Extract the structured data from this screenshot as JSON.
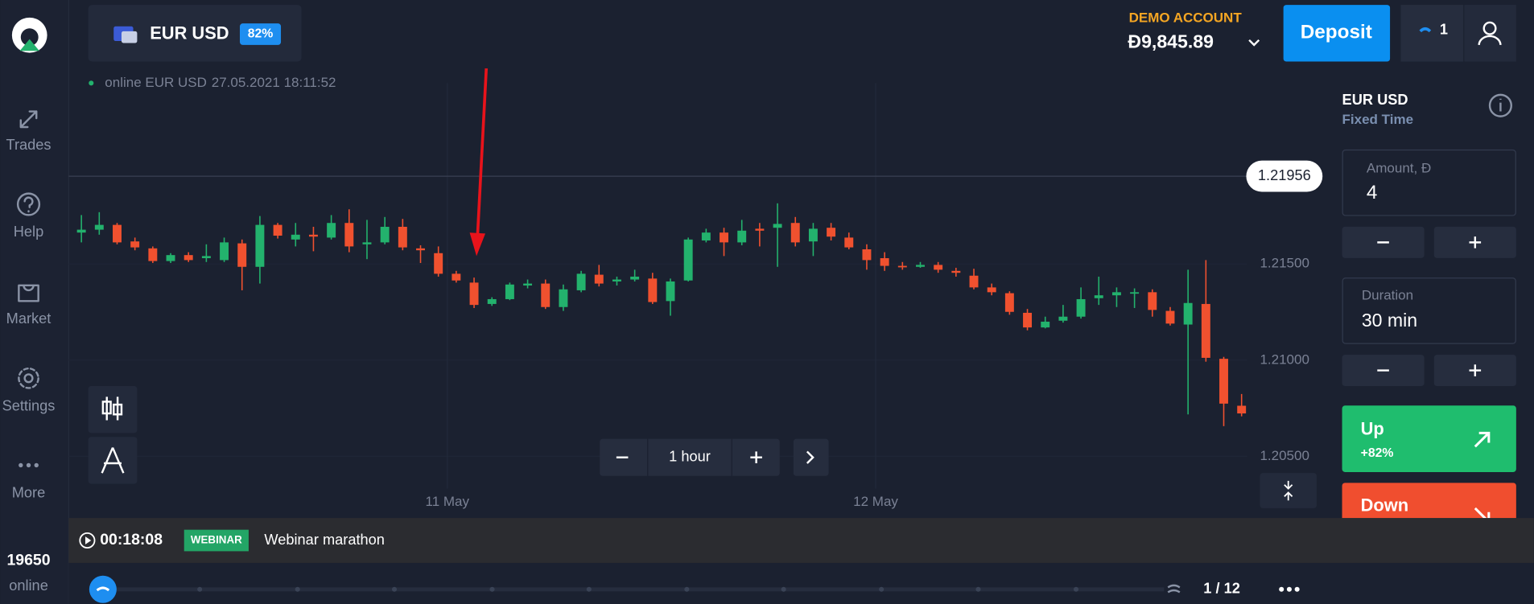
{
  "sidebar": {
    "nav": [
      "Trades",
      "Help",
      "Market",
      "Settings",
      "More"
    ],
    "online_count": 19650,
    "online_label": "online"
  },
  "header": {
    "asset": "EUR USD",
    "payout": "82%",
    "account_type": "DEMO ACCOUNT",
    "balance": "Đ9,845.89",
    "deposit": "Deposit",
    "notifications": 1
  },
  "chart_status": {
    "status": "online EUR USD",
    "timestamp": "27.05.2021 18:11:52"
  },
  "chart_data": {
    "type": "candlestick",
    "categories": [
      null,
      null,
      null,
      null,
      null,
      null,
      null,
      null,
      null,
      null,
      null,
      null,
      null,
      null,
      null,
      null,
      null,
      null,
      null,
      null,
      null,
      "11 May",
      null,
      null,
      null,
      null,
      null,
      null,
      null,
      null,
      null,
      null,
      null,
      null,
      null,
      null,
      null,
      null,
      null,
      null,
      null,
      null,
      null,
      null,
      null,
      "12 May",
      null,
      null,
      null,
      null,
      null,
      null,
      null,
      null,
      null,
      null,
      null,
      null,
      null,
      null,
      null,
      null,
      null,
      null,
      null,
      null
    ],
    "open": [
      1.21663,
      1.21678,
      1.21703,
      1.21617,
      1.21581,
      1.21515,
      1.21546,
      1.2153,
      1.2152,
      1.21607,
      1.21485,
      1.21703,
      1.21627,
      1.21652,
      1.21637,
      1.21713,
      1.21602,
      1.21612,
      1.21693,
      1.21581,
      1.21556,
      1.21449,
      1.21403,
      1.21292,
      1.21317,
      1.21388,
      1.21398,
      1.21276,
      1.21363,
      1.21444,
      1.21409,
      1.21419,
      1.21424,
      1.21307,
      1.21414,
      1.21622,
      1.21663,
      1.21612,
      1.21683,
      1.21688,
      1.21713,
      1.21617,
      1.21688,
      1.21637,
      1.21576,
      1.2153,
      1.2149,
      1.21485,
      1.21495,
      1.21464,
      1.21439,
      1.21378,
      1.21348,
      1.21246,
      1.2117,
      1.21205,
      1.21226,
      1.21322,
      1.21337,
      1.21348,
      1.21353,
      1.21256,
      1.21185,
      1.21292,
      1.21007,
      1.20763
    ],
    "high": [
      1.21754,
      1.21769,
      1.21713,
      1.21637,
      1.21591,
      1.21556,
      1.21561,
      1.21602,
      1.21637,
      1.21627,
      1.21749,
      1.21713,
      1.21713,
      1.21693,
      1.21754,
      1.21784,
      1.21729,
      1.21744,
      1.21734,
      1.21597,
      1.21591,
      1.21464,
      1.21429,
      1.21327,
      1.21403,
      1.21419,
      1.21419,
      1.21393,
      1.21464,
      1.21495,
      1.21434,
      1.2147,
      1.21454,
      1.21424,
      1.21637,
      1.21683,
      1.21688,
      1.21729,
      1.21713,
      1.21815,
      1.21744,
      1.21713,
      1.21713,
      1.21663,
      1.21602,
      1.21561,
      1.2151,
      1.2151,
      1.2151,
      1.2148,
      1.21475,
      1.21398,
      1.21358,
      1.21266,
      1.21226,
      1.21287,
      1.21378,
      1.21434,
      1.21378,
      1.21373,
      1.21368,
      1.21276,
      1.2147,
      1.2152,
      1.21017,
      1.20824
    ],
    "low": [
      1.21612,
      1.21652,
      1.21602,
      1.21571,
      1.21505,
      1.21505,
      1.2151,
      1.2151,
      1.2151,
      1.21363,
      1.21398,
      1.21632,
      1.21591,
      1.21566,
      1.21627,
      1.21561,
      1.21525,
      1.21602,
      1.21571,
      1.21505,
      1.21434,
      1.21403,
      1.21271,
      1.21282,
      1.21312,
      1.21373,
      1.21266,
      1.21256,
      1.21353,
      1.21383,
      1.21388,
      1.21409,
      1.21292,
      1.21231,
      1.21409,
      1.21612,
      1.21541,
      1.21597,
      1.21591,
      1.21485,
      1.21591,
      1.21541,
      1.21622,
      1.21576,
      1.2147,
      1.21464,
      1.2147,
      1.2148,
      1.21454,
      1.21434,
      1.21368,
      1.21337,
      1.21236,
      1.21155,
      1.21165,
      1.21195,
      1.21216,
      1.21287,
      1.21276,
      1.21271,
      1.21226,
      1.2118,
      1.20718,
      1.20992,
      1.20657,
      1.20708
    ],
    "close": [
      1.21678,
      1.21703,
      1.21612,
      1.21586,
      1.21515,
      1.21546,
      1.2152,
      1.21541,
      1.21612,
      1.21485,
      1.21703,
      1.21647,
      1.21652,
      1.21642,
      1.21713,
      1.21591,
      1.21612,
      1.21693,
      1.21586,
      1.21571,
      1.21449,
      1.21414,
      1.21287,
      1.21317,
      1.21393,
      1.21398,
      1.21276,
      1.21368,
      1.21449,
      1.21398,
      1.21419,
      1.21434,
      1.21302,
      1.21409,
      1.21627,
      1.21663,
      1.21612,
      1.21673,
      1.21673,
      1.21708,
      1.21612,
      1.21683,
      1.21642,
      1.21586,
      1.2152,
      1.2149,
      1.21485,
      1.21495,
      1.2147,
      1.21454,
      1.21378,
      1.21353,
      1.21251,
      1.2117,
      1.212,
      1.21226,
      1.21317,
      1.21337,
      1.21353,
      1.21353,
      1.21261,
      1.2119,
      1.21297,
      1.21012,
      1.20774,
      1.20723
    ],
    "up_color": "#23b26d",
    "down_color": "#f0512f",
    "ylim": [
      1.20332,
      1.2244
    ],
    "yticks": [
      {
        "value": 1.215,
        "label": "1.21500"
      },
      {
        "value": 1.21,
        "label": "1.21000"
      },
      {
        "value": 1.205,
        "label": "1.20500"
      }
    ],
    "current_price": 1.21956
  },
  "timeframe": "1 hour",
  "panel": {
    "asset": "EUR USD",
    "mode": "Fixed Time",
    "amount_label": "Amount, Đ",
    "amount": 4,
    "duration_label": "Duration",
    "duration": "30 min",
    "up": "Up",
    "up_payout": "+82%",
    "down": "Down"
  },
  "footer": {
    "timer": "00:18:08",
    "badge": "WEBINAR",
    "title": "Webinar marathon",
    "pager": "1 / 12"
  }
}
